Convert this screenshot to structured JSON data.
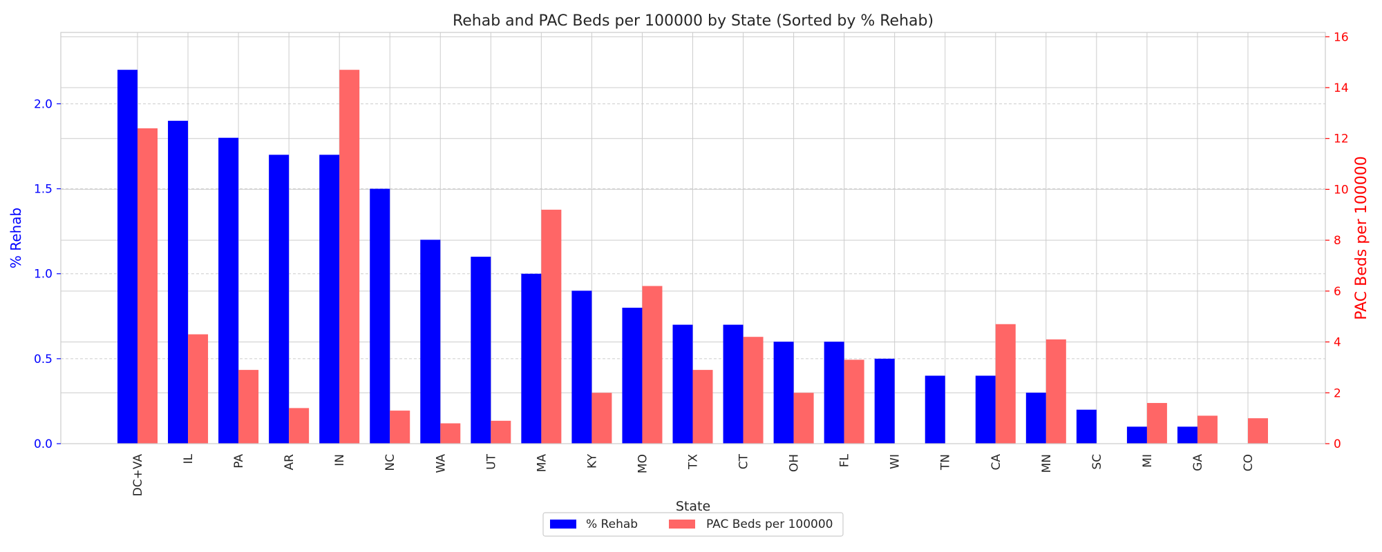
{
  "chart_data": {
    "type": "bar",
    "title": "Rehab and PAC Beds per 100000 by State (Sorted by % Rehab)",
    "xlabel": "State",
    "categories": [
      "DC+VA",
      "IL",
      "PA",
      "AR",
      "IN",
      "NC",
      "WA",
      "UT",
      "MA",
      "KY",
      "MO",
      "TX",
      "CT",
      "OH",
      "FL",
      "WI",
      "TN",
      "CA",
      "MN",
      "SC",
      "MI",
      "GA",
      "CO"
    ],
    "series": [
      {
        "name": "% Rehab",
        "axis": "left",
        "color": "#0000ff",
        "values": [
          2.2,
          1.9,
          1.8,
          1.7,
          1.7,
          1.5,
          1.2,
          1.1,
          1.0,
          0.9,
          0.8,
          0.7,
          0.7,
          0.6,
          0.6,
          0.5,
          0.4,
          0.4,
          0.3,
          0.2,
          0.1,
          0.1,
          0.0
        ]
      },
      {
        "name": "PAC Beds per 100000",
        "axis": "right",
        "color": "#ff6666",
        "values": [
          12.4,
          4.3,
          2.9,
          1.4,
          14.7,
          1.3,
          0.8,
          0.9,
          9.2,
          2.0,
          6.2,
          2.9,
          4.2,
          2.0,
          3.3,
          0.0,
          0.0,
          4.7,
          4.1,
          0.0,
          1.6,
          1.1,
          1.0
        ]
      }
    ],
    "y_left": {
      "label": "% Rehab",
      "ylim": [
        0,
        2.42
      ],
      "ticks": [
        0.0,
        0.5,
        1.0,
        1.5,
        2.0
      ],
      "tick_labels": [
        "0.0",
        "0.5",
        "1.0",
        "1.5",
        "2.0"
      ],
      "color": "#0000ff"
    },
    "y_right": {
      "label": "PAC Beds per 100000",
      "ylim": [
        0,
        16.17
      ],
      "ticks": [
        0,
        2,
        4,
        6,
        8,
        10,
        12,
        14,
        16
      ],
      "tick_labels": [
        "0",
        "2",
        "4",
        "6",
        "8",
        "10",
        "12",
        "14",
        "16"
      ],
      "color": "#ff0000"
    },
    "grid": true,
    "legend_position": "bottom-center",
    "legend": [
      "% Rehab",
      "PAC Beds per 100000"
    ]
  }
}
